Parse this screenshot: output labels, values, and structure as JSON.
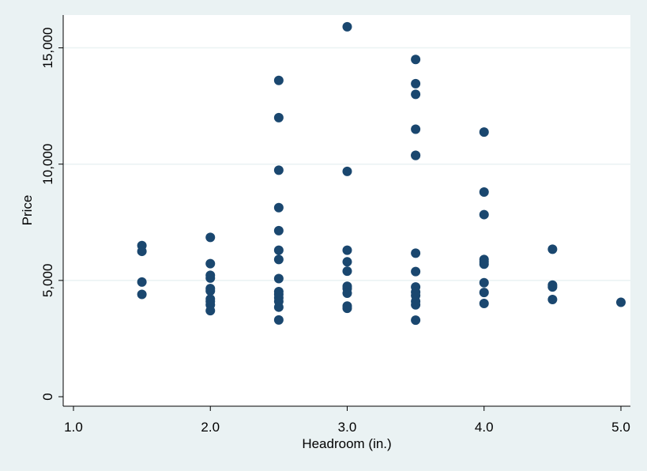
{
  "chart_data": {
    "type": "scatter",
    "title": "",
    "xlabel": "Headroom (in.)",
    "ylabel": "Price",
    "xlim": [
      1.0,
      5.0
    ],
    "ylim": [
      0,
      15906
    ],
    "grid": true,
    "legend": "none",
    "x_ticks": [
      {
        "value": 1.0,
        "label": "1.0"
      },
      {
        "value": 2.0,
        "label": "2.0"
      },
      {
        "value": 3.0,
        "label": "3.0"
      },
      {
        "value": 4.0,
        "label": "4.0"
      },
      {
        "value": 5.0,
        "label": "5.0"
      }
    ],
    "y_ticks": [
      {
        "value": 0,
        "label": "0"
      },
      {
        "value": 5000,
        "label": "5,000"
      },
      {
        "value": 10000,
        "label": "10,000"
      },
      {
        "value": 15000,
        "label": "15,000"
      }
    ],
    "marker_color": "#1a476f",
    "points": [
      {
        "x": 1.5,
        "y": 6500
      },
      {
        "x": 1.5,
        "y": 6250
      },
      {
        "x": 1.5,
        "y": 4930
      },
      {
        "x": 1.5,
        "y": 4400
      },
      {
        "x": 2.0,
        "y": 6850
      },
      {
        "x": 2.0,
        "y": 5720
      },
      {
        "x": 2.0,
        "y": 5220
      },
      {
        "x": 2.0,
        "y": 5100
      },
      {
        "x": 2.0,
        "y": 4650
      },
      {
        "x": 2.0,
        "y": 4550
      },
      {
        "x": 2.0,
        "y": 4200
      },
      {
        "x": 2.0,
        "y": 4100
      },
      {
        "x": 2.0,
        "y": 3950
      },
      {
        "x": 2.0,
        "y": 3700
      },
      {
        "x": 2.5,
        "y": 13600
      },
      {
        "x": 2.5,
        "y": 12000
      },
      {
        "x": 2.5,
        "y": 9740
      },
      {
        "x": 2.5,
        "y": 8130
      },
      {
        "x": 2.5,
        "y": 7140
      },
      {
        "x": 2.5,
        "y": 6300
      },
      {
        "x": 2.5,
        "y": 5900
      },
      {
        "x": 2.5,
        "y": 5080
      },
      {
        "x": 2.5,
        "y": 4520
      },
      {
        "x": 2.5,
        "y": 4400
      },
      {
        "x": 2.5,
        "y": 4250
      },
      {
        "x": 2.5,
        "y": 4100
      },
      {
        "x": 2.5,
        "y": 3850
      },
      {
        "x": 2.5,
        "y": 3300
      },
      {
        "x": 3.0,
        "y": 15906
      },
      {
        "x": 3.0,
        "y": 9690
      },
      {
        "x": 3.0,
        "y": 6300
      },
      {
        "x": 3.0,
        "y": 5800
      },
      {
        "x": 3.0,
        "y": 5400
      },
      {
        "x": 3.0,
        "y": 4750
      },
      {
        "x": 3.0,
        "y": 4650
      },
      {
        "x": 3.0,
        "y": 4450
      },
      {
        "x": 3.0,
        "y": 3900
      },
      {
        "x": 3.0,
        "y": 3800
      },
      {
        "x": 3.5,
        "y": 14500
      },
      {
        "x": 3.5,
        "y": 13460
      },
      {
        "x": 3.5,
        "y": 13000
      },
      {
        "x": 3.5,
        "y": 11500
      },
      {
        "x": 3.5,
        "y": 10380
      },
      {
        "x": 3.5,
        "y": 10370
      },
      {
        "x": 3.5,
        "y": 6170
      },
      {
        "x": 3.5,
        "y": 5380
      },
      {
        "x": 3.5,
        "y": 4720
      },
      {
        "x": 3.5,
        "y": 4500
      },
      {
        "x": 3.5,
        "y": 4350
      },
      {
        "x": 3.5,
        "y": 4100
      },
      {
        "x": 3.5,
        "y": 3950
      },
      {
        "x": 3.5,
        "y": 3290
      },
      {
        "x": 4.0,
        "y": 11380
      },
      {
        "x": 4.0,
        "y": 8800
      },
      {
        "x": 4.0,
        "y": 7830
      },
      {
        "x": 4.0,
        "y": 5900
      },
      {
        "x": 4.0,
        "y": 5800
      },
      {
        "x": 4.0,
        "y": 5700
      },
      {
        "x": 4.0,
        "y": 4900
      },
      {
        "x": 4.0,
        "y": 4480
      },
      {
        "x": 4.0,
        "y": 4010
      },
      {
        "x": 4.5,
        "y": 6340
      },
      {
        "x": 4.5,
        "y": 4800
      },
      {
        "x": 4.5,
        "y": 4720
      },
      {
        "x": 4.5,
        "y": 4180
      },
      {
        "x": 5.0,
        "y": 4060
      }
    ]
  }
}
